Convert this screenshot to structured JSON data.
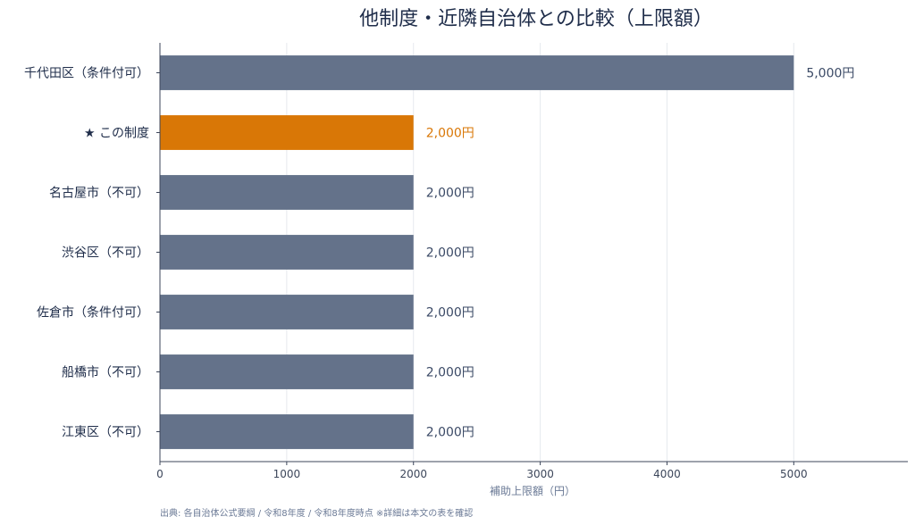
{
  "chart_data": {
    "type": "bar",
    "orientation": "horizontal",
    "title": "他制度・近隣自治体との比較（上限額）",
    "xlabel": "補助上限額（円）",
    "ylabel": "",
    "xlim": [
      0,
      5900
    ],
    "x_ticks": [
      0,
      1000,
      2000,
      3000,
      4000,
      5000
    ],
    "grid": "vertical",
    "categories": [
      "千代田区（条件付可）",
      "★ この制度",
      "名古屋市（不可）",
      "渋谷区（不可）",
      "佐倉市（条件付可）",
      "船橋市（不可）",
      "江東区（不可）"
    ],
    "values": [
      5000,
      2000,
      2000,
      2000,
      2000,
      2000,
      2000
    ],
    "value_labels": [
      "5,000円",
      "2,000円",
      "2,000円",
      "2,000円",
      "2,000円",
      "2,000円",
      "2,000円"
    ],
    "highlight_index": 1,
    "colors": {
      "default": "#64728a",
      "highlight": "#d97706",
      "default_label": "#3b4a66",
      "highlight_label": "#d97706"
    },
    "source": "出典: 各自治体公式要綱 / 令和8年度 / 令和8年度時点 ※詳細は本文の表を確認"
  }
}
